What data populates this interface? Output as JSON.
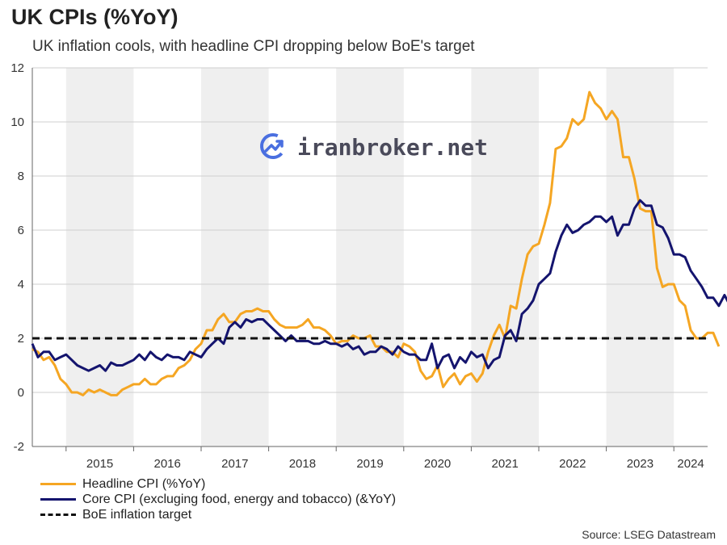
{
  "title": "UK CPIs (%YoY)",
  "subtitle": "UK inflation cools, with headline CPI dropping below BoE's target",
  "watermark": "iranbroker.net",
  "source": "Source: LSEG Datastream",
  "colors": {
    "headline": "#f5a623",
    "core": "#14146e",
    "target": "#111111",
    "band": "#efefef"
  },
  "legend": [
    {
      "label": "Headline CPI (%YoY)",
      "color": "#f5a623",
      "style": "solid"
    },
    {
      "label": "Core CPI (excluging food, energy and tobacco) (&YoY)",
      "color": "#14146e",
      "style": "solid"
    },
    {
      "label": "BoE inflation target",
      "color": "#111111",
      "style": "dashed"
    }
  ],
  "chart_data": {
    "type": "line",
    "title": "UK CPIs (%YoY)",
    "subtitle": "UK inflation cools, with headline CPI dropping below BoE's target",
    "xlabel": "",
    "ylabel": "",
    "ylim": [
      -2,
      12
    ],
    "yticks": [
      -2,
      0,
      2,
      4,
      6,
      8,
      10,
      12
    ],
    "xlim": [
      "2014-07",
      "2024-07"
    ],
    "xtick_labels": [
      "2015",
      "2016",
      "2017",
      "2018",
      "2019",
      "2020",
      "2021",
      "2022",
      "2023",
      "2024"
    ],
    "grid": "horizontal",
    "legend_position": "bottom-left",
    "shaded_years": [
      2015,
      2017,
      2019,
      2021,
      2023
    ],
    "target": 2,
    "series": [
      {
        "name": "Headline CPI (%YoY)",
        "color": "#f5a623",
        "start": "2014-07",
        "values": [
          1.6,
          1.5,
          1.2,
          1.3,
          1.0,
          0.5,
          0.3,
          0.0,
          0.0,
          -0.1,
          0.1,
          0.0,
          0.1,
          0.0,
          -0.1,
          -0.1,
          0.1,
          0.2,
          0.3,
          0.3,
          0.5,
          0.3,
          0.3,
          0.5,
          0.6,
          0.6,
          0.9,
          1.0,
          1.2,
          1.6,
          1.8,
          2.3,
          2.3,
          2.7,
          2.9,
          2.6,
          2.6,
          2.9,
          3.0,
          3.0,
          3.1,
          3.0,
          3.0,
          2.7,
          2.5,
          2.4,
          2.4,
          2.4,
          2.5,
          2.7,
          2.4,
          2.4,
          2.3,
          2.1,
          1.8,
          1.9,
          1.9,
          2.1,
          2.0,
          2.0,
          2.1,
          1.7,
          1.7,
          1.5,
          1.5,
          1.3,
          1.8,
          1.7,
          1.5,
          0.8,
          0.5,
          0.6,
          1.0,
          0.2,
          0.5,
          0.7,
          0.3,
          0.6,
          0.7,
          0.4,
          0.7,
          1.5,
          2.1,
          2.5,
          2.0,
          3.2,
          3.1,
          4.2,
          5.1,
          5.4,
          5.5,
          6.2,
          7.0,
          9.0,
          9.1,
          9.4,
          10.1,
          9.9,
          10.1,
          11.1,
          10.7,
          10.5,
          10.1,
          10.4,
          10.1,
          8.7,
          8.7,
          7.9,
          6.8,
          6.7,
          6.7,
          4.6,
          3.9,
          4.0,
          4.0,
          3.4,
          3.2,
          2.3,
          2.0,
          2.0,
          2.2,
          2.2,
          1.7
        ]
      },
      {
        "name": "Core CPI (excluging food, energy and tobacco) (&YoY)",
        "color": "#14146e",
        "start": "2014-07",
        "values": [
          1.8,
          1.3,
          1.5,
          1.5,
          1.2,
          1.3,
          1.4,
          1.2,
          1.0,
          0.9,
          0.8,
          0.9,
          1.0,
          0.8,
          1.1,
          1.0,
          1.0,
          1.1,
          1.2,
          1.4,
          1.2,
          1.5,
          1.3,
          1.2,
          1.4,
          1.3,
          1.3,
          1.2,
          1.5,
          1.4,
          1.3,
          1.6,
          1.8,
          2.0,
          1.8,
          2.4,
          2.6,
          2.4,
          2.7,
          2.6,
          2.7,
          2.7,
          2.5,
          2.3,
          2.1,
          1.9,
          2.1,
          1.9,
          1.9,
          1.9,
          1.8,
          1.8,
          1.9,
          1.8,
          1.8,
          1.7,
          1.8,
          1.6,
          1.7,
          1.4,
          1.5,
          1.5,
          1.7,
          1.6,
          1.4,
          1.7,
          1.5,
          1.4,
          1.4,
          1.2,
          1.2,
          1.8,
          0.9,
          1.3,
          1.4,
          0.9,
          1.3,
          1.1,
          1.5,
          1.3,
          1.4,
          0.9,
          1.2,
          1.3,
          2.1,
          2.3,
          1.9,
          2.9,
          3.1,
          3.4,
          4.0,
          4.2,
          4.4,
          5.2,
          5.8,
          6.2,
          5.9,
          6.0,
          6.2,
          6.3,
          6.5,
          6.5,
          6.3,
          6.5,
          5.8,
          6.2,
          6.2,
          6.8,
          7.1,
          6.9,
          6.9,
          6.2,
          6.1,
          5.7,
          5.1,
          5.1,
          5.0,
          4.5,
          4.2,
          3.9,
          3.5,
          3.5,
          3.2,
          3.6,
          3.2
        ]
      }
    ]
  }
}
